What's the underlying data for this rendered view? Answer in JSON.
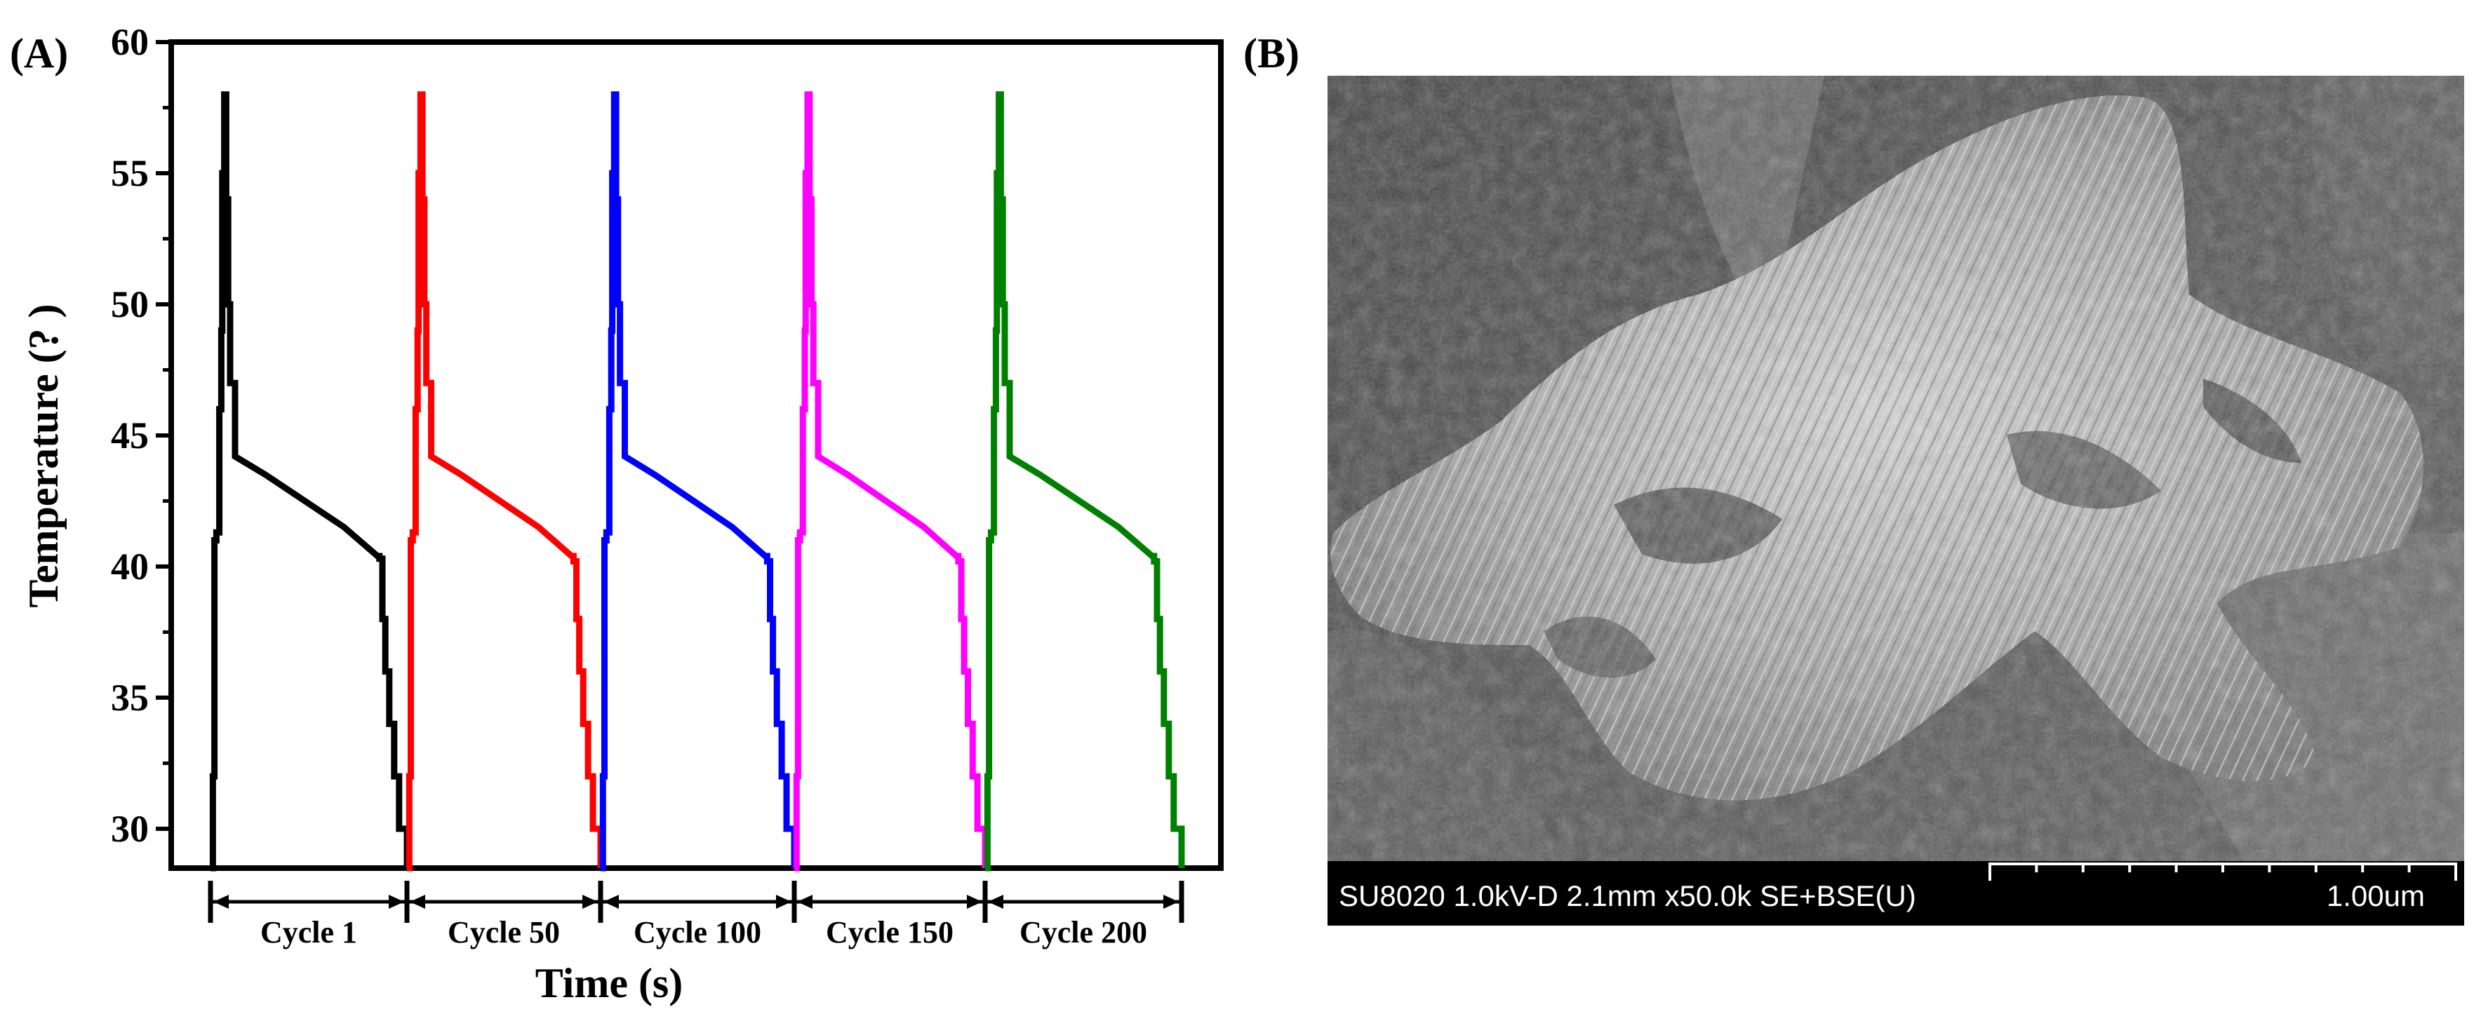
{
  "panels": {
    "a_label": "(A)",
    "b_label": "(B)"
  },
  "chart_data": {
    "type": "line",
    "title": "",
    "xlabel": "Time (s)",
    "ylabel": "Temperature (?  )",
    "ylim": [
      28.5,
      60
    ],
    "yticks": [
      30,
      35,
      40,
      45,
      50,
      55,
      60
    ],
    "grid": false,
    "legend": "none",
    "x_axis_numeric_ticks": false,
    "segment_labels": [
      "Cycle 1",
      "Cycle 50",
      "Cycle 100",
      "Cycle 150",
      "Cycle 200"
    ],
    "series": [
      {
        "name": "Cycle 1",
        "color": "#000000",
        "values": [
          28.5,
          32,
          41,
          41.3,
          46,
          49,
          55,
          58,
          54,
          50,
          47,
          44.2,
          43.5,
          42.5,
          41.5,
          40.4,
          40.3,
          38,
          36,
          34,
          32,
          30,
          28.5
        ]
      },
      {
        "name": "Cycle 50",
        "color": "#ff0000",
        "values": [
          28.5,
          32,
          41,
          41.3,
          46,
          49,
          55,
          58,
          54,
          50,
          47,
          44.2,
          43.5,
          42.5,
          41.5,
          40.4,
          40.2,
          38,
          36,
          34,
          32,
          30,
          28.5
        ]
      },
      {
        "name": "Cycle 100",
        "color": "#0000ff",
        "values": [
          28.5,
          32,
          41,
          41.3,
          46,
          49,
          55,
          58,
          54,
          50,
          47,
          44.2,
          43.5,
          42.5,
          41.5,
          40.4,
          40.2,
          38,
          36,
          34,
          32,
          30,
          28.5
        ]
      },
      {
        "name": "Cycle 150",
        "color": "#ff00ff",
        "values": [
          28.5,
          32,
          41,
          41.3,
          46,
          49,
          55,
          58,
          54,
          50,
          47,
          44.2,
          43.5,
          42.5,
          41.5,
          40.4,
          40.2,
          38,
          36,
          34,
          32,
          30,
          28.5
        ]
      },
      {
        "name": "Cycle 200",
        "color": "#008000",
        "values": [
          28.5,
          32,
          41,
          41.3,
          46,
          49,
          55,
          58,
          54,
          50,
          47,
          44.2,
          43.5,
          42.5,
          41.5,
          40.4,
          40.2,
          38,
          36,
          34,
          32,
          30,
          28.5
        ]
      }
    ]
  },
  "sem": {
    "info_text": "SU8020 1.0kV-D 2.1mm x50.0k SE+BSE(U)",
    "scale_label": "1.00um"
  }
}
